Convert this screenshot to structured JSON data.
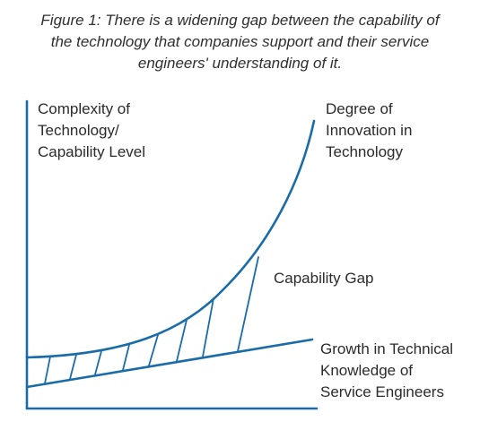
{
  "caption": {
    "lines": [
      "Figure 1: There is a widening gap between the capability of",
      "the technology that companies support and their service",
      "engineers' understanding of it."
    ]
  },
  "diagram": {
    "y_axis_label": [
      "Complexity of",
      "Technology/",
      "Capability Level"
    ],
    "curve_label": [
      "Degree of",
      "Innovation in",
      "Technology"
    ],
    "gap_label": "Capability Gap",
    "line_label": [
      "Growth in Technical",
      "Knowledge of",
      "Service Engineers"
    ],
    "colors": {
      "stroke": "#1a6ca8",
      "text": "#2b2b2b"
    }
  }
}
